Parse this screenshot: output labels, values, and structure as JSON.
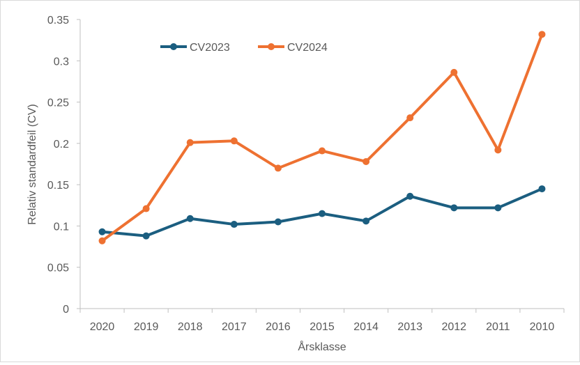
{
  "chart_data": {
    "type": "line",
    "title": "",
    "xlabel": "Årsklasse",
    "ylabel": "Relativ standardfeil (CV)",
    "ylim": [
      0,
      0.35
    ],
    "yticks": [
      "0",
      "0.05",
      "0.1",
      "0.15",
      "0.2",
      "0.25",
      "0.3",
      "0.35"
    ],
    "grid": false,
    "legend": "top-left",
    "categories": [
      "2020",
      "2019",
      "2018",
      "2017",
      "2016",
      "2015",
      "2014",
      "2013",
      "2012",
      "2011",
      "2010"
    ],
    "series": [
      {
        "name": "CV2023",
        "color": "#1b5e80",
        "values": [
          0.093,
          0.088,
          0.109,
          0.102,
          0.105,
          0.115,
          0.106,
          0.136,
          0.122,
          0.122,
          0.145
        ]
      },
      {
        "name": "CV2024",
        "color": "#ee7131",
        "values": [
          0.082,
          0.121,
          0.201,
          0.203,
          0.17,
          0.191,
          0.178,
          0.231,
          0.286,
          0.192,
          0.332
        ]
      }
    ]
  }
}
